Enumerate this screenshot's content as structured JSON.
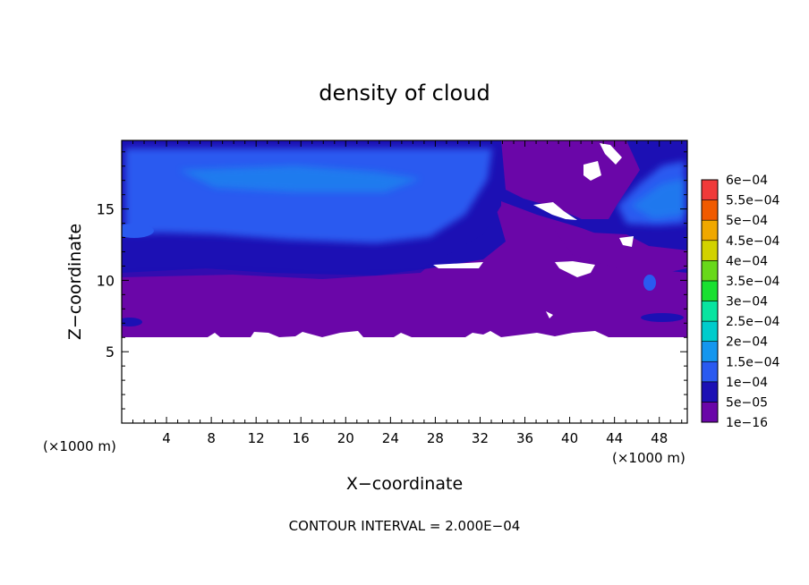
{
  "chart_data": {
    "type": "heatmap",
    "title": "density of cloud",
    "xlabel": "X−coordinate",
    "ylabel": "Z−coordinate",
    "x_unit_left": "(×1000 m)",
    "x_unit_right": "(×1000 m)",
    "footer": "CONTOUR INTERVAL = 2.000E−04",
    "xlim": [
      0,
      50.5
    ],
    "ylim": [
      0,
      19.8
    ],
    "x_ticks": [
      "4",
      "8",
      "12",
      "16",
      "20",
      "24",
      "28",
      "32",
      "36",
      "40",
      "44",
      "48"
    ],
    "x_tick_values": [
      4,
      8,
      12,
      16,
      20,
      24,
      28,
      32,
      36,
      40,
      44,
      48
    ],
    "y_ticks": [
      "5",
      "10",
      "15"
    ],
    "y_tick_values": [
      5,
      10,
      15
    ],
    "legend": {
      "placement": "right",
      "levels": [
        "1e−16",
        "5e−05",
        "1e−04",
        "1.5e−04",
        "2e−04",
        "2.5e−04",
        "3e−04",
        "3.5e−04",
        "4e−04",
        "4.5e−04",
        "5e−04",
        "5.5e−04",
        "6e−04"
      ],
      "colors": [
        "#6a06a8",
        "#1c10b4",
        "#2a5af0",
        "#1496ee",
        "#00cccc",
        "#08e4a0",
        "#19e030",
        "#68d81a",
        "#d2d200",
        "#f0a800",
        "#f05a00",
        "#f03a3a",
        "#f59a9a"
      ]
    },
    "regions": [
      {
        "level": 0,
        "x": [
          0,
          50.5
        ],
        "z": [
          6.1,
          10.7
        ]
      },
      {
        "level": 1,
        "x": [
          0,
          50.5
        ],
        "z": [
          10.7,
          19.8
        ]
      },
      {
        "level": 2,
        "x": [
          0,
          33
        ],
        "z": [
          12.5,
          19.2
        ]
      },
      {
        "level": 3,
        "x": [
          5,
          30
        ],
        "z": [
          15.5,
          18.5
        ]
      },
      {
        "level": 2,
        "x": [
          43,
          50.5
        ],
        "z": [
          14,
          18
        ]
      },
      {
        "level": 0,
        "x": [
          33,
          43
        ],
        "z": [
          10.7,
          19.8
        ]
      }
    ]
  }
}
